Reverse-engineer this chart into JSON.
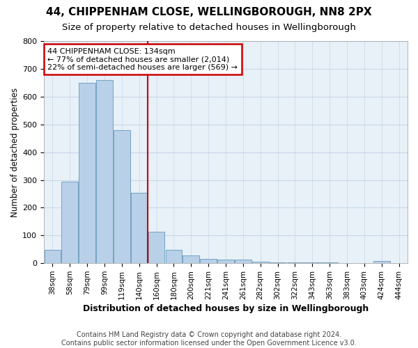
{
  "title": "44, CHIPPENHAM CLOSE, WELLINGBOROUGH, NN8 2PX",
  "subtitle": "Size of property relative to detached houses in Wellingborough",
  "xlabel": "Distribution of detached houses by size in Wellingborough",
  "ylabel": "Number of detached properties",
  "bar_color": "#b8d0e8",
  "bar_edgecolor": "#6699bb",
  "categories": [
    "38sqm",
    "58sqm",
    "79sqm",
    "99sqm",
    "119sqm",
    "140sqm",
    "160sqm",
    "180sqm",
    "200sqm",
    "221sqm",
    "241sqm",
    "261sqm",
    "282sqm",
    "302sqm",
    "322sqm",
    "343sqm",
    "363sqm",
    "383sqm",
    "403sqm",
    "424sqm",
    "444sqm"
  ],
  "values": [
    47,
    295,
    650,
    660,
    480,
    253,
    114,
    48,
    28,
    16,
    13,
    13,
    5,
    4,
    3,
    3,
    2,
    1,
    1,
    7,
    1
  ],
  "ylim": [
    0,
    800
  ],
  "yticks": [
    0,
    100,
    200,
    300,
    400,
    500,
    600,
    700,
    800
  ],
  "vline_position": 5.5,
  "vline_color": "#cc0000",
  "annotation_text": "44 CHIPPENHAM CLOSE: 134sqm\n← 77% of detached houses are smaller (2,014)\n22% of semi-detached houses are larger (569) →",
  "annotation_box_color": "#cc0000",
  "annotation_bg": "#ffffff",
  "grid_color": "#c8d8e8",
  "bg_color": "#e8f0f8",
  "fig_bg_color": "#ffffff",
  "footer": "Contains HM Land Registry data © Crown copyright and database right 2024.\nContains public sector information licensed under the Open Government Licence v3.0.",
  "title_fontsize": 11,
  "subtitle_fontsize": 9.5,
  "xlabel_fontsize": 9,
  "ylabel_fontsize": 8.5,
  "footer_fontsize": 7,
  "tick_fontsize": 8,
  "xtick_fontsize": 7.5
}
